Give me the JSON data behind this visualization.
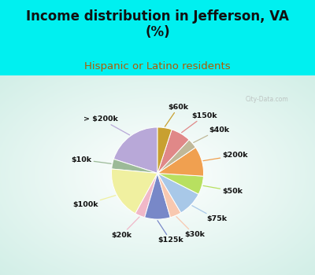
{
  "title": "Income distribution in Jefferson, VA\n(%)",
  "subtitle": "Hispanic or Latino residents",
  "title_color": "#111111",
  "subtitle_color": "#b05a00",
  "bg_cyan": "#00f0f0",
  "bg_chart": "#e8f5f0",
  "watermark": "City-Data.com",
  "labels": [
    "> $200k",
    "$10k",
    "$100k",
    "$20k",
    "$125k",
    "$30k",
    "$75k",
    "$50k",
    "$200k",
    "$40k",
    "$150k",
    "$60k"
  ],
  "values": [
    20.0,
    3.5,
    18.5,
    3.5,
    9.0,
    4.0,
    9.0,
    6.5,
    10.5,
    3.5,
    7.0,
    5.0
  ],
  "colors": [
    "#b8a8d8",
    "#9cba98",
    "#f0f0a0",
    "#f0b8c8",
    "#7888c8",
    "#f8c8b0",
    "#a8c8e8",
    "#b8e060",
    "#f0a050",
    "#c0b898",
    "#e08888",
    "#c8a030"
  ],
  "start_angle": 90,
  "title_fontsize": 12,
  "subtitle_fontsize": 9.5,
  "label_fontsize": 6.8
}
